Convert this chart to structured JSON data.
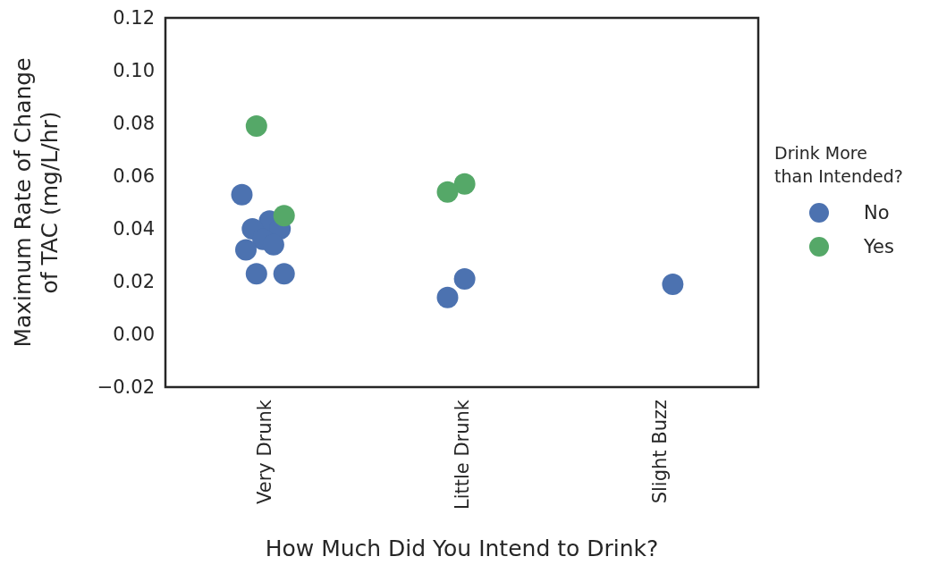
{
  "chart_data": {
    "type": "scatter",
    "xlabel": "How Much Did You Intend to Drink?",
    "ylabel": "Maximum Rate of Change\nof TAC (mg/L/hr)",
    "legend_title": "Drink More\nthan Intended?",
    "legend": "right",
    "grid": false,
    "marker": "circle",
    "categories": [
      "Very Drunk",
      "Little Drunk",
      "Slight Buzz"
    ],
    "ylim": [
      -0.02,
      0.12
    ],
    "yticks": [
      {
        "value": -0.02,
        "label": "−0.02"
      },
      {
        "value": 0,
        "label": "0.00"
      },
      {
        "value": 0.02,
        "label": "0.02"
      },
      {
        "value": 0.04,
        "label": "0.04"
      },
      {
        "value": 0.06,
        "label": "0.06"
      },
      {
        "value": 0.08,
        "label": "0.08"
      },
      {
        "value": 0.1,
        "label": "0.10"
      },
      {
        "value": 0.12,
        "label": "0.12"
      }
    ],
    "series": [
      {
        "name": "No",
        "color": "#4c72b0",
        "x": [
          "Very Drunk",
          "Very Drunk",
          "Very Drunk",
          "Very Drunk",
          "Very Drunk",
          "Very Drunk",
          "Very Drunk",
          "Very Drunk",
          "Very Drunk",
          "Little Drunk",
          "Little Drunk",
          "Slight Buzz"
        ],
        "values": [
          0.053,
          0.043,
          0.04,
          0.04,
          0.036,
          0.032,
          0.034,
          0.023,
          0.023,
          0.021,
          0.014,
          0.019
        ]
      },
      {
        "name": "Yes",
        "color": "#55a868",
        "x": [
          "Very Drunk",
          "Very Drunk",
          "Little Drunk",
          "Little Drunk"
        ],
        "values": [
          0.079,
          0.045,
          0.057,
          0.054
        ]
      }
    ]
  }
}
